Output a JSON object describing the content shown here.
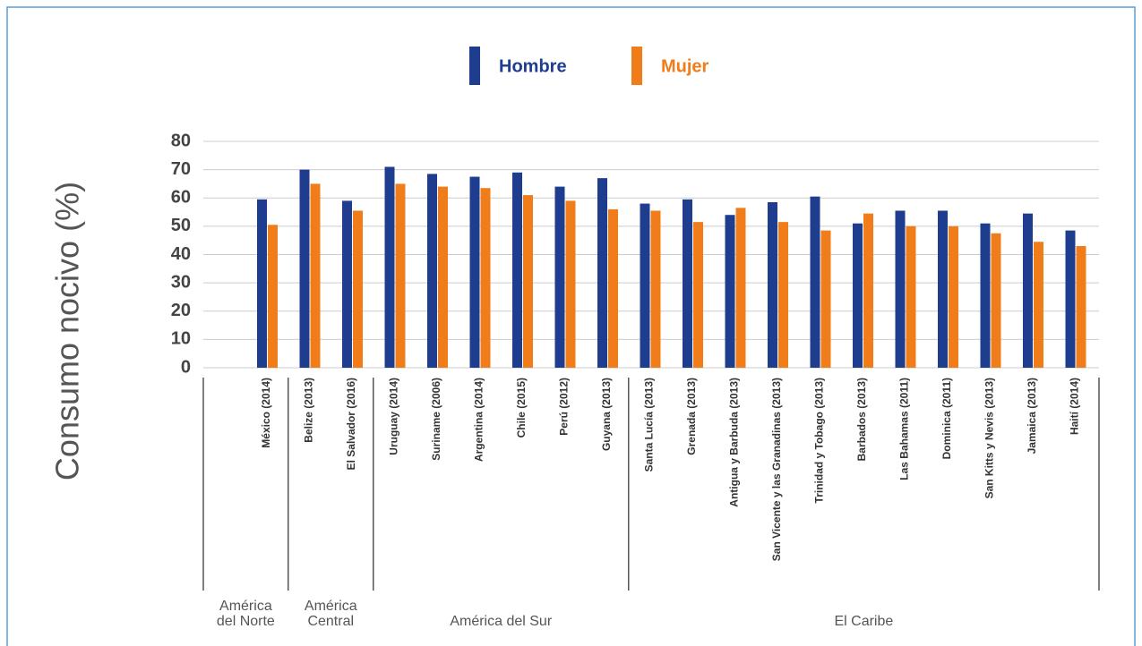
{
  "chart_data": {
    "type": "bar",
    "ylabel": "Consumo nocivo (%)",
    "categories": [
      "México (2014)",
      "Belize (2013)",
      "El Salvador (2016)",
      "Uruguay (2014)",
      "Suriname (2006)",
      "Argentina (2014)",
      "Chile (2015)",
      "Perú (2012)",
      "Guyana (2013)",
      "Santa Lucía (2013)",
      "Grenada (2013)",
      "Antigua y Barbuda (2013)",
      "San Vicente y las Granadinas (2013)",
      "Trinidad y Tobago (2013)",
      "Barbados (2013)",
      "Las Bahamas (2011)",
      "Dominica (2011)",
      "San Kitts y Nevis (2013)",
      "Jamaica (2013)",
      "Haití (2014)"
    ],
    "series": [
      {
        "name": "Hombre",
        "color": "#1f3d8f",
        "values": [
          59.5,
          70,
          59,
          71,
          68.5,
          67.5,
          69,
          64,
          67,
          58,
          59.5,
          54,
          58.5,
          60.5,
          51,
          55.5,
          55.5,
          51,
          54.5,
          48.5
        ]
      },
      {
        "name": "Mujer",
        "color": "#f07c1a",
        "values": [
          50.5,
          65,
          55.5,
          65,
          64,
          63.5,
          61,
          59,
          56,
          55.5,
          51.5,
          56.5,
          51.5,
          48.5,
          54.5,
          50,
          50,
          47.5,
          44.5,
          43
        ]
      }
    ],
    "regions": [
      {
        "label": [
          "América",
          "del Norte"
        ],
        "count": 1
      },
      {
        "label": [
          "América",
          "Central"
        ],
        "count": 2
      },
      {
        "label": [
          "América del Sur"
        ],
        "count": 6
      },
      {
        "label": [
          "El Caribe"
        ],
        "count": 11
      }
    ],
    "ylim": [
      0,
      80
    ],
    "yticks": [
      0,
      10,
      20,
      30,
      40,
      50,
      60,
      70,
      80
    ],
    "grid": true
  }
}
